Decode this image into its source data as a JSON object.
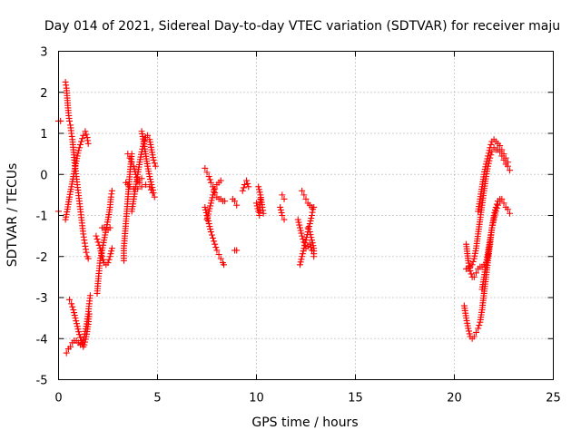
{
  "chart_data": {
    "type": "scatter",
    "title": "Day 014 of 2021, Sidereal Day-to-day VTEC variation (SDTVAR) for receiver maju",
    "xlabel": "GPS time / hours",
    "ylabel": "SDTVAR / TECUs",
    "xlim": [
      0,
      25
    ],
    "ylim": [
      -5,
      3
    ],
    "xticks": [
      "0",
      "5",
      "10",
      "15",
      "20",
      "25"
    ],
    "yticks": [
      "-5",
      "-4",
      "-3",
      "-2",
      "-1",
      "0",
      "1",
      "2",
      "3"
    ],
    "grid": true,
    "marker": "plus",
    "color": "#ff0000",
    "traces": [
      [
        [
          0.0,
          1.3
        ],
        [
          0.1,
          1.3
        ]
      ],
      [
        [
          0.0,
          -0.9
        ]
      ],
      [
        [
          0.35,
          2.25
        ],
        [
          0.4,
          2.1
        ],
        [
          0.45,
          1.8
        ],
        [
          0.5,
          1.5
        ],
        [
          0.55,
          1.3
        ],
        [
          0.6,
          1.2
        ],
        [
          0.65,
          1.0
        ],
        [
          0.7,
          0.85
        ],
        [
          0.75,
          0.6
        ],
        [
          0.8,
          0.35
        ],
        [
          0.85,
          0.15
        ],
        [
          0.9,
          -0.05
        ],
        [
          0.95,
          -0.25
        ],
        [
          1.0,
          -0.45
        ],
        [
          1.05,
          -0.65
        ],
        [
          1.1,
          -0.85
        ],
        [
          1.15,
          -1.05
        ],
        [
          1.2,
          -1.25
        ],
        [
          1.25,
          -1.45
        ],
        [
          1.3,
          -1.6
        ],
        [
          1.35,
          -1.75
        ],
        [
          1.4,
          -1.9
        ],
        [
          1.45,
          -2.0
        ],
        [
          1.5,
          -2.05
        ]
      ],
      [
        [
          0.35,
          -1.1
        ],
        [
          0.45,
          -0.85
        ],
        [
          0.55,
          -0.55
        ],
        [
          0.65,
          -0.3
        ],
        [
          0.75,
          -0.05
        ],
        [
          0.85,
          0.2
        ],
        [
          0.95,
          0.45
        ],
        [
          1.05,
          0.65
        ],
        [
          1.15,
          0.8
        ],
        [
          1.25,
          0.95
        ],
        [
          1.35,
          1.05
        ],
        [
          1.45,
          0.9
        ],
        [
          1.5,
          0.75
        ]
      ],
      [
        [
          0.4,
          -4.35
        ],
        [
          0.5,
          -4.25
        ],
        [
          0.6,
          -4.2
        ],
        [
          0.7,
          -4.1
        ],
        [
          0.8,
          -4.05
        ],
        [
          0.9,
          -4.05
        ],
        [
          1.0,
          -4.1
        ],
        [
          1.1,
          -4.15
        ],
        [
          1.2,
          -4.1
        ],
        [
          1.3,
          -3.95
        ],
        [
          1.4,
          -3.7
        ],
        [
          1.5,
          -3.4
        ],
        [
          1.55,
          -3.15
        ],
        [
          1.6,
          -2.95
        ]
      ],
      [
        [
          0.55,
          -3.05
        ],
        [
          0.65,
          -3.15
        ],
        [
          0.75,
          -3.3
        ],
        [
          0.85,
          -3.5
        ],
        [
          0.95,
          -3.7
        ],
        [
          1.05,
          -3.9
        ],
        [
          1.15,
          -4.05
        ],
        [
          1.25,
          -4.2
        ],
        [
          1.3,
          -4.15
        ],
        [
          1.4,
          -3.95
        ],
        [
          1.5,
          -3.65
        ],
        [
          1.55,
          -3.4
        ]
      ],
      [
        [
          1.9,
          -1.5
        ],
        [
          2.0,
          -1.65
        ],
        [
          2.1,
          -1.8
        ],
        [
          2.2,
          -2.0
        ],
        [
          2.3,
          -2.15
        ],
        [
          2.4,
          -2.2
        ],
        [
          2.5,
          -2.15
        ],
        [
          2.6,
          -2.0
        ],
        [
          2.7,
          -1.8
        ]
      ],
      [
        [
          1.95,
          -2.9
        ],
        [
          2.0,
          -2.6
        ],
        [
          2.05,
          -2.35
        ],
        [
          2.1,
          -2.1
        ],
        [
          2.2,
          -1.85
        ],
        [
          2.3,
          -1.6
        ],
        [
          2.4,
          -1.35
        ],
        [
          2.5,
          -1.1
        ],
        [
          2.6,
          -0.8
        ],
        [
          2.65,
          -0.55
        ],
        [
          2.7,
          -0.4
        ]
      ],
      [
        [
          2.2,
          -1.3
        ],
        [
          2.3,
          -1.3
        ],
        [
          2.4,
          -1.35
        ],
        [
          2.5,
          -1.35
        ],
        [
          2.6,
          -1.3
        ]
      ],
      [
        [
          3.3,
          -2.1
        ],
        [
          3.3,
          -1.8
        ],
        [
          3.35,
          -1.5
        ],
        [
          3.4,
          -1.2
        ],
        [
          3.45,
          -0.9
        ],
        [
          3.5,
          -0.6
        ],
        [
          3.55,
          -0.3
        ],
        [
          3.6,
          0.0
        ],
        [
          3.65,
          0.25
        ],
        [
          3.7,
          0.5
        ]
      ],
      [
        [
          3.4,
          -0.2
        ],
        [
          3.6,
          -0.3
        ],
        [
          3.8,
          -0.35
        ],
        [
          4.0,
          -0.35
        ],
        [
          4.2,
          -0.3
        ],
        [
          4.4,
          -0.25
        ],
        [
          4.6,
          -0.3
        ],
        [
          4.75,
          -0.45
        ]
      ],
      [
        [
          3.5,
          0.5
        ],
        [
          3.6,
          0.4
        ],
        [
          3.7,
          0.3
        ],
        [
          3.8,
          0.2
        ],
        [
          3.9,
          0.0
        ],
        [
          4.0,
          -0.15
        ],
        [
          4.1,
          -0.2
        ],
        [
          4.2,
          -0.1
        ]
      ],
      [
        [
          3.7,
          -0.9
        ],
        [
          3.8,
          -0.6
        ],
        [
          3.9,
          -0.3
        ],
        [
          4.0,
          0.0
        ],
        [
          4.1,
          0.3
        ],
        [
          4.2,
          0.55
        ],
        [
          4.3,
          0.75
        ],
        [
          4.4,
          0.9
        ],
        [
          4.5,
          0.95
        ],
        [
          4.6,
          0.85
        ],
        [
          4.7,
          0.6
        ],
        [
          4.8,
          0.35
        ],
        [
          4.9,
          0.2
        ]
      ],
      [
        [
          4.2,
          1.05
        ],
        [
          4.3,
          0.8
        ],
        [
          4.4,
          0.5
        ],
        [
          4.5,
          0.2
        ],
        [
          4.6,
          -0.05
        ],
        [
          4.7,
          -0.25
        ],
        [
          4.8,
          -0.45
        ],
        [
          4.85,
          -0.55
        ]
      ],
      [
        [
          7.4,
          0.15
        ],
        [
          7.5,
          0.05
        ],
        [
          7.6,
          -0.05
        ],
        [
          7.7,
          -0.2
        ],
        [
          7.8,
          -0.3
        ],
        [
          7.9,
          -0.45
        ],
        [
          8.0,
          -0.55
        ],
        [
          8.1,
          -0.6
        ],
        [
          8.2,
          -0.6
        ],
        [
          8.3,
          -0.65
        ],
        [
          8.4,
          -0.65
        ]
      ],
      [
        [
          7.4,
          -0.8
        ],
        [
          7.5,
          -1.0
        ],
        [
          7.6,
          -1.2
        ],
        [
          7.7,
          -1.4
        ],
        [
          7.8,
          -1.55
        ],
        [
          7.9,
          -1.7
        ],
        [
          8.0,
          -1.85
        ],
        [
          8.1,
          -1.95
        ],
        [
          8.2,
          -2.05
        ],
        [
          8.3,
          -2.15
        ],
        [
          8.35,
          -2.2
        ]
      ],
      [
        [
          7.5,
          -1.1
        ],
        [
          7.6,
          -0.9
        ],
        [
          7.7,
          -0.7
        ],
        [
          7.8,
          -0.5
        ],
        [
          7.9,
          -0.35
        ],
        [
          8.0,
          -0.25
        ],
        [
          8.1,
          -0.2
        ],
        [
          8.2,
          -0.15
        ]
      ],
      [
        [
          8.8,
          -0.6
        ],
        [
          8.9,
          -0.65
        ],
        [
          9.0,
          -0.75
        ]
      ],
      [
        [
          8.9,
          -1.85
        ],
        [
          9.0,
          -1.85
        ]
      ],
      [
        [
          9.3,
          -0.4
        ],
        [
          9.4,
          -0.25
        ],
        [
          9.5,
          -0.15
        ],
        [
          9.6,
          -0.3
        ]
      ],
      [
        [
          10.0,
          -0.7
        ],
        [
          10.1,
          -0.9
        ],
        [
          10.15,
          -1.0
        ],
        [
          10.2,
          -0.6
        ]
      ],
      [
        [
          10.1,
          -0.3
        ],
        [
          10.2,
          -0.5
        ],
        [
          10.3,
          -0.8
        ],
        [
          10.35,
          -0.95
        ]
      ],
      [
        [
          11.2,
          -0.8
        ],
        [
          11.3,
          -1.0
        ],
        [
          11.4,
          -1.1
        ]
      ],
      [
        [
          11.3,
          -0.5
        ],
        [
          11.4,
          -0.6
        ]
      ],
      [
        [
          12.1,
          -1.1
        ],
        [
          12.2,
          -1.3
        ],
        [
          12.3,
          -1.5
        ],
        [
          12.4,
          -1.65
        ],
        [
          12.5,
          -1.8
        ],
        [
          12.6,
          -1.75
        ],
        [
          12.7,
          -1.7
        ],
        [
          12.8,
          -1.85
        ]
      ],
      [
        [
          12.2,
          -2.2
        ],
        [
          12.3,
          -2.0
        ],
        [
          12.4,
          -1.8
        ],
        [
          12.5,
          -1.6
        ],
        [
          12.6,
          -1.4
        ],
        [
          12.7,
          -1.2
        ],
        [
          12.8,
          -1.0
        ],
        [
          12.85,
          -0.85
        ]
      ],
      [
        [
          12.3,
          -0.4
        ],
        [
          12.4,
          -0.5
        ],
        [
          12.5,
          -0.6
        ],
        [
          12.6,
          -0.7
        ],
        [
          12.7,
          -0.75
        ],
        [
          12.8,
          -0.8
        ],
        [
          12.9,
          -0.8
        ]
      ],
      [
        [
          12.6,
          -1.3
        ],
        [
          12.7,
          -1.4
        ],
        [
          12.8,
          -1.6
        ],
        [
          12.9,
          -1.8
        ],
        [
          12.9,
          -2.0
        ]
      ],
      [
        [
          20.5,
          -3.2
        ],
        [
          20.6,
          -3.5
        ],
        [
          20.7,
          -3.75
        ],
        [
          20.8,
          -3.95
        ],
        [
          20.9,
          -4.0
        ],
        [
          21.0,
          -3.95
        ],
        [
          21.1,
          -3.85
        ],
        [
          21.2,
          -3.75
        ],
        [
          21.3,
          -3.6
        ],
        [
          21.4,
          -3.3
        ],
        [
          21.5,
          -2.9
        ],
        [
          21.6,
          -2.5
        ],
        [
          21.7,
          -2.1
        ],
        [
          21.8,
          -1.7
        ],
        [
          21.9,
          -1.3
        ],
        [
          22.0,
          -1.0
        ],
        [
          22.1,
          -0.8
        ],
        [
          22.2,
          -0.65
        ],
        [
          22.3,
          -0.6
        ],
        [
          22.4,
          -0.6
        ],
        [
          22.5,
          -0.7
        ],
        [
          22.6,
          -0.8
        ],
        [
          22.7,
          -0.85
        ],
        [
          22.8,
          -0.95
        ]
      ],
      [
        [
          20.6,
          -1.7
        ],
        [
          20.7,
          -2.1
        ],
        [
          20.8,
          -2.35
        ],
        [
          20.9,
          -2.5
        ],
        [
          21.0,
          -2.5
        ],
        [
          21.1,
          -2.4
        ],
        [
          21.2,
          -2.3
        ],
        [
          21.3,
          -2.25
        ],
        [
          21.4,
          -2.25
        ],
        [
          21.5,
          -2.2
        ],
        [
          21.6,
          -2.15
        ],
        [
          21.7,
          -2.0
        ],
        [
          21.8,
          -1.7
        ]
      ],
      [
        [
          20.6,
          -2.3
        ],
        [
          20.7,
          -2.3
        ],
        [
          20.8,
          -2.25
        ],
        [
          20.9,
          -2.2
        ],
        [
          21.0,
          -2.05
        ],
        [
          21.1,
          -1.8
        ],
        [
          21.2,
          -1.45
        ],
        [
          21.3,
          -1.1
        ],
        [
          21.4,
          -0.75
        ],
        [
          21.5,
          -0.4
        ],
        [
          21.6,
          -0.05
        ],
        [
          21.7,
          0.2
        ],
        [
          21.8,
          0.4
        ],
        [
          21.9,
          0.55
        ],
        [
          22.0,
          0.65
        ],
        [
          22.1,
          0.6
        ],
        [
          22.2,
          0.6
        ],
        [
          22.3,
          0.55
        ],
        [
          22.4,
          0.45
        ],
        [
          22.5,
          0.35
        ],
        [
          22.6,
          0.25
        ],
        [
          22.7,
          0.2
        ],
        [
          22.8,
          0.1
        ]
      ],
      [
        [
          21.2,
          -0.9
        ],
        [
          21.3,
          -0.6
        ],
        [
          21.4,
          -0.3
        ],
        [
          21.5,
          0.0
        ],
        [
          21.6,
          0.25
        ],
        [
          21.7,
          0.45
        ],
        [
          21.8,
          0.65
        ],
        [
          21.9,
          0.8
        ],
        [
          22.0,
          0.85
        ],
        [
          22.1,
          0.8
        ],
        [
          22.2,
          0.75
        ],
        [
          22.3,
          0.7
        ],
        [
          22.4,
          0.6
        ],
        [
          22.5,
          0.5
        ],
        [
          22.6,
          0.4
        ],
        [
          22.7,
          0.3
        ]
      ],
      [
        [
          21.4,
          -2.8
        ],
        [
          21.5,
          -2.5
        ],
        [
          21.6,
          -2.2
        ],
        [
          21.7,
          -1.9
        ],
        [
          21.8,
          -1.6
        ],
        [
          21.9,
          -1.3
        ],
        [
          22.0,
          -1.1
        ],
        [
          22.1,
          -0.9
        ],
        [
          22.2,
          -0.75
        ],
        [
          22.3,
          -0.65
        ]
      ]
    ]
  }
}
